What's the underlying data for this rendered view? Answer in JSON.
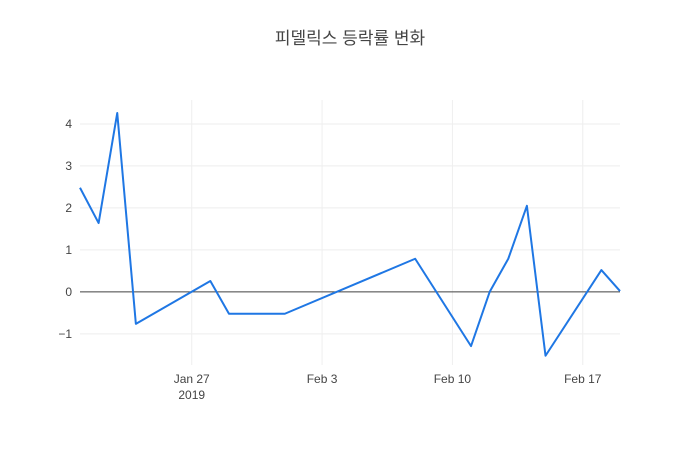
{
  "chart_data": {
    "type": "line",
    "title": "피델릭스 등락률 변화",
    "x": [
      "2019-01-21",
      "2019-01-22",
      "2019-01-23",
      "2019-01-24",
      "2019-01-28",
      "2019-01-29",
      "2019-02-01",
      "2019-02-08",
      "2019-02-11",
      "2019-02-12",
      "2019-02-13",
      "2019-02-14",
      "2019-02-15",
      "2019-02-18",
      "2019-02-19"
    ],
    "series": [
      {
        "name": "등락률",
        "color": "#1f77e4",
        "values": [
          2.48,
          1.64,
          4.26,
          -0.76,
          0.26,
          -0.52,
          -0.52,
          0.79,
          -1.29,
          0.0,
          0.79,
          2.05,
          -1.52,
          0.52,
          0.02
        ]
      }
    ],
    "xlim": [
      "2019-01-21",
      "2019-02-19"
    ],
    "xticks": [
      {
        "value": "2019-01-27",
        "label": "Jan 27\n2019"
      },
      {
        "value": "2019-02-03",
        "label": "Feb 3"
      },
      {
        "value": "2019-02-10",
        "label": "Feb 10"
      },
      {
        "value": "2019-02-17",
        "label": "Feb 17"
      }
    ],
    "ylim": [
      -1.74,
      4.57
    ],
    "yticks": [
      {
        "value": -1,
        "label": "−1"
      },
      0,
      1,
      2,
      3,
      4
    ],
    "grid": true,
    "zeroline": true
  }
}
